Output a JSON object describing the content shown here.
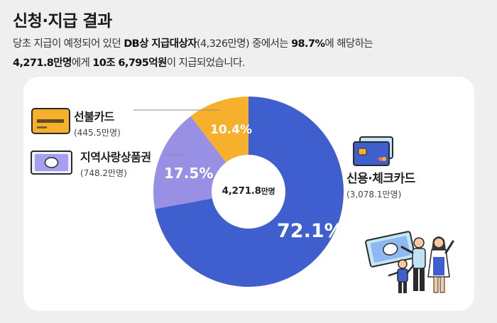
{
  "title": "신청·지급 결과",
  "desc": {
    "l1_a": "당초 지급이 예정되어 있던 ",
    "l1_b": "DB상 지급대상자",
    "l1_c": "(4,326만명) 중에서는 ",
    "l1_d": "98.7%",
    "l1_e": "에 해당하는",
    "l2_a": "4,271.8만명",
    "l2_b": "에게 ",
    "l2_c": "10조 6,795억원",
    "l2_d": "이 지급되었습니다."
  },
  "center_label": {
    "value": "4,271.8",
    "unit": "만명"
  },
  "colors": {
    "credit": "#3f5fcf",
    "local": "#9890e4",
    "prepaid": "#f7b02b",
    "card_bg": "#ffffff",
    "page_bg": "#efefef"
  },
  "icons": [
    "prepaid-card-icon",
    "gift-voucher-icon",
    "credit-card-icon",
    "family-illustration"
  ],
  "chart_data": {
    "type": "pie",
    "donut": true,
    "categories": [
      "신용·체크카드",
      "지역사랑상품권",
      "선불카드"
    ],
    "values": [
      72.1,
      17.5,
      10.4
    ],
    "value_labels": [
      "72.1%",
      "17.5%",
      "10.4%"
    ],
    "amounts": [
      "(3,078.1만명)",
      "(748.2만명)",
      "(445.5만명)"
    ],
    "center_text": "4,271.8만명",
    "start": "12 o'clock",
    "direction": "clockwise"
  }
}
